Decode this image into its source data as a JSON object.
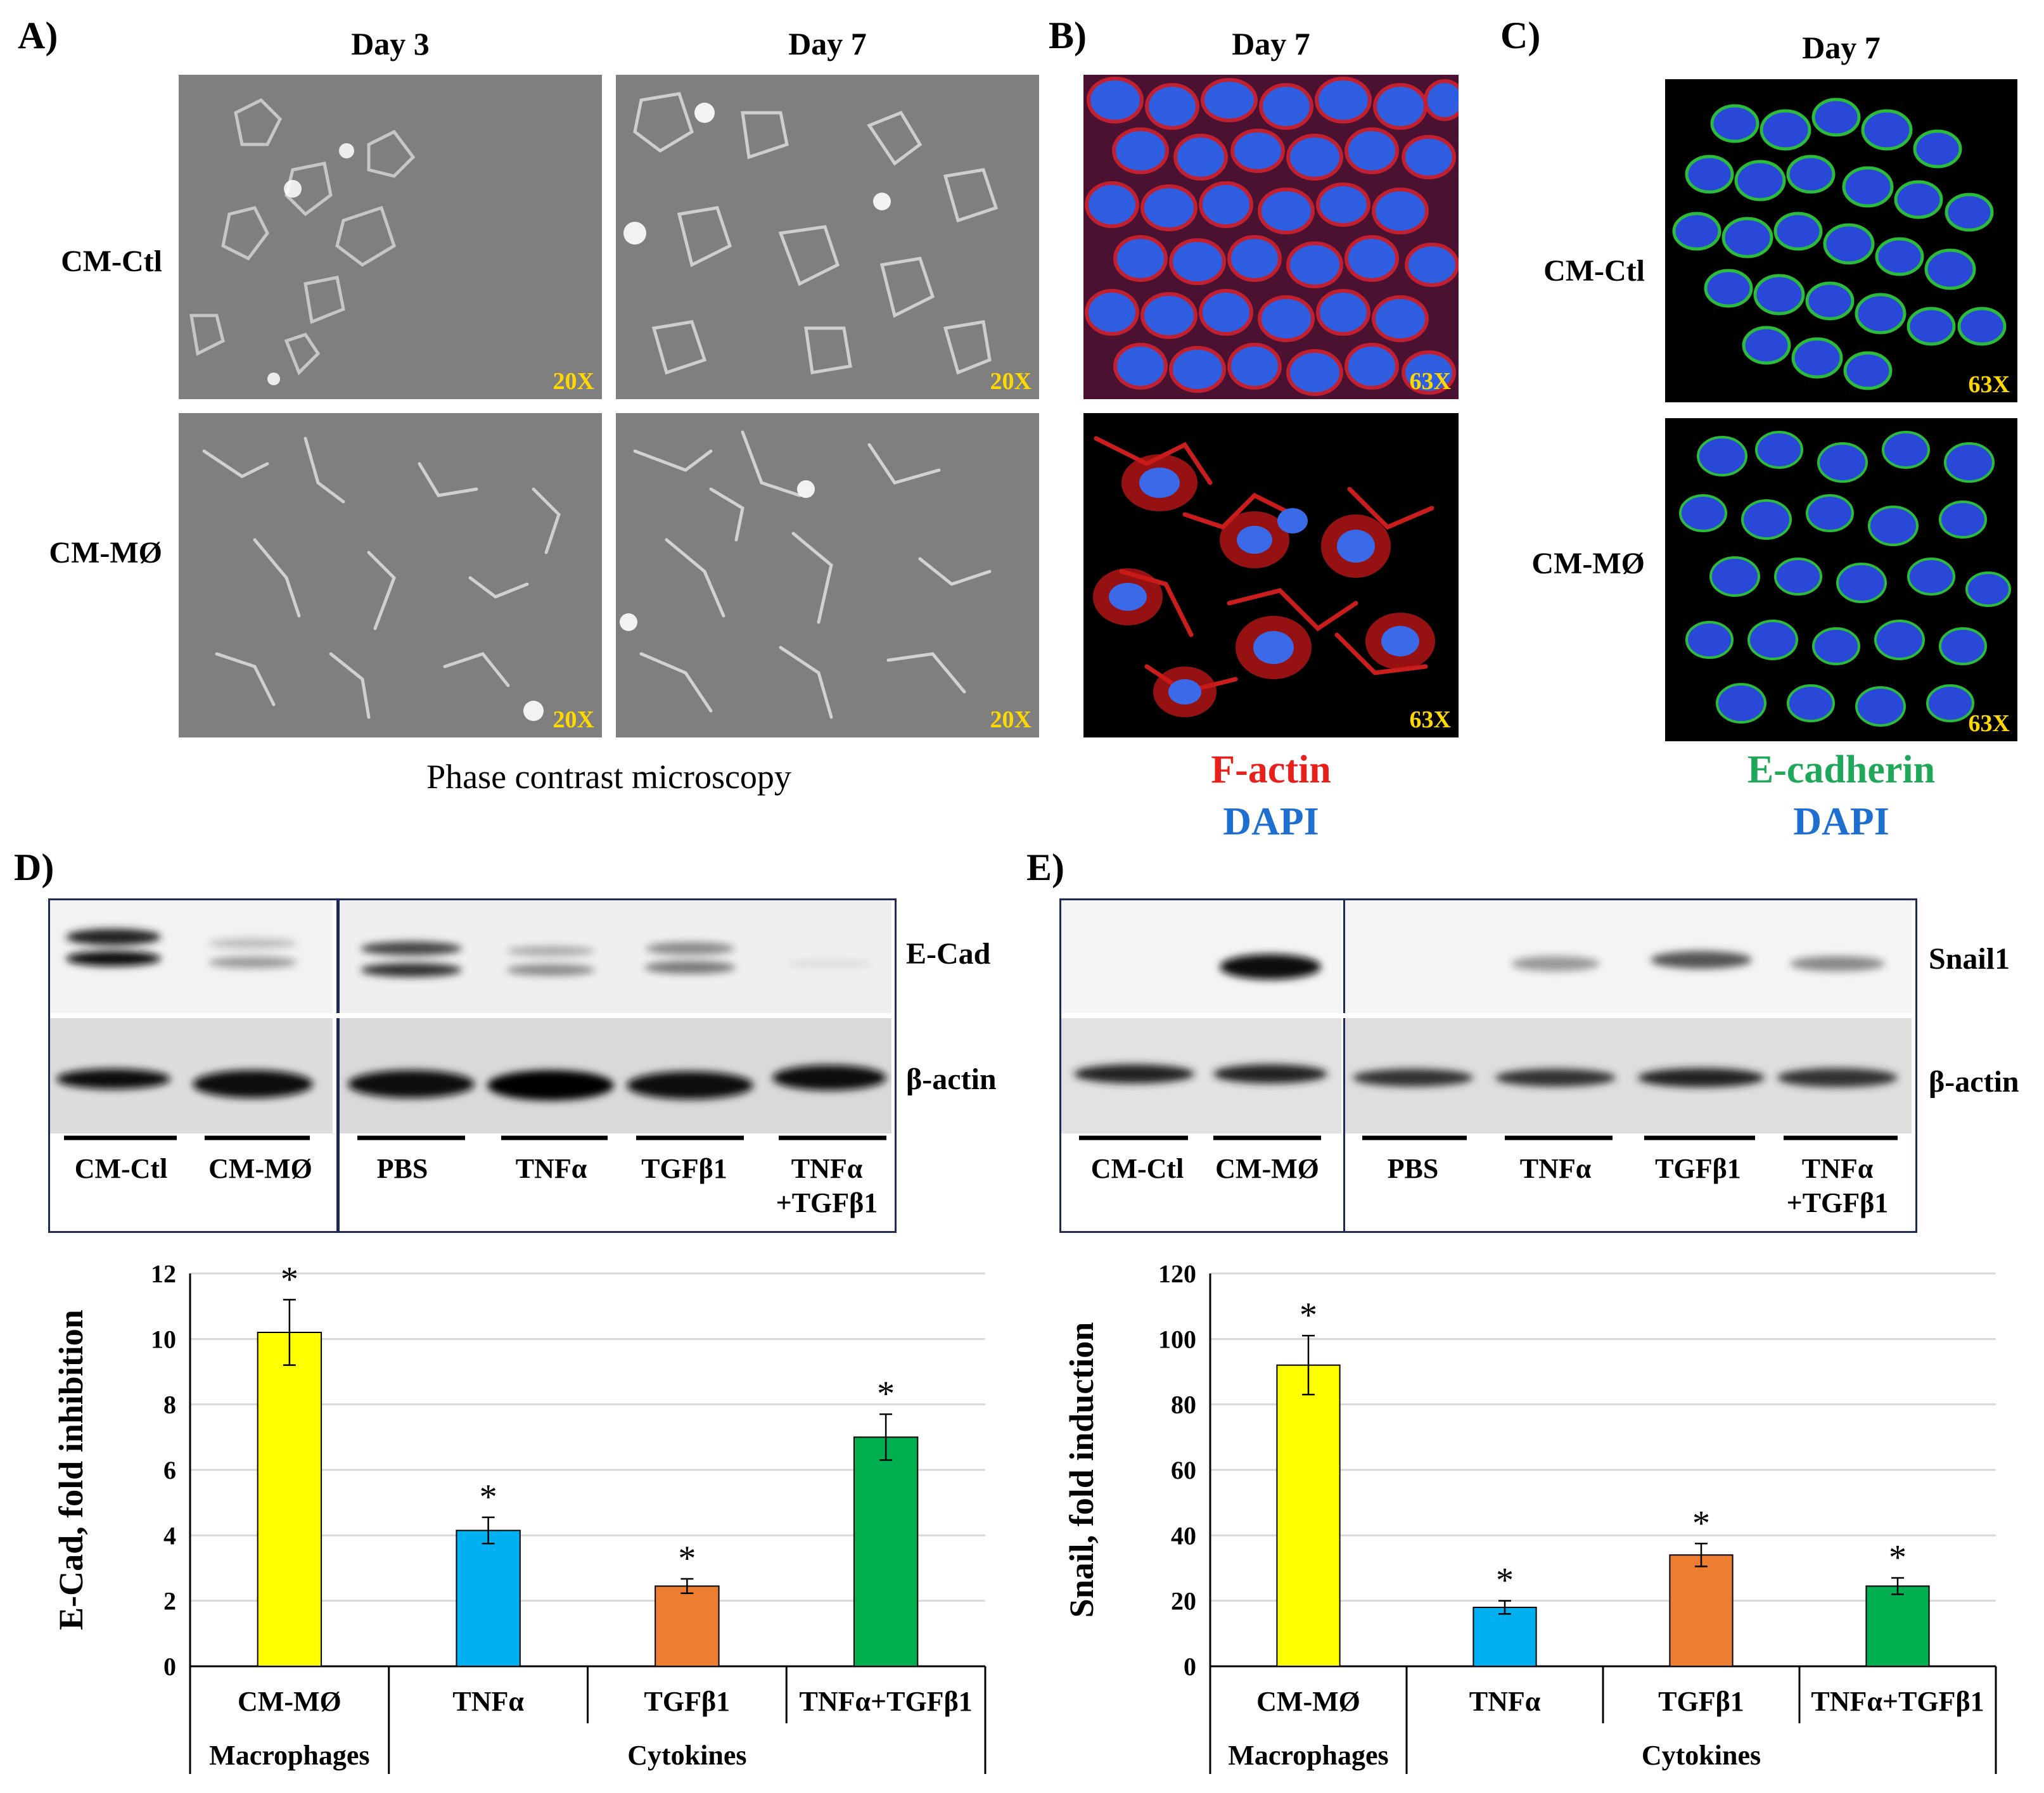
{
  "panelA": {
    "letter": "A)",
    "col_day3": "Day 3",
    "col_day7": "Day 7",
    "row_ctl": "CM-Ctl",
    "row_mo": "CM-MØ",
    "mag": "20X",
    "caption": "Phase contrast microscopy"
  },
  "panelB": {
    "letter": "B)",
    "col": "Day 7",
    "mag": "63X",
    "stain1": "F-actin",
    "stain2": "DAPI",
    "stain1_color": "#e8201b",
    "stain2_color": "#1f6fd0"
  },
  "panelC": {
    "letter": "C)",
    "col": "Day 7",
    "row_ctl": "CM-Ctl",
    "row_mo": "CM-MØ",
    "mag": "63X",
    "stain1": "E-cadherin",
    "stain2": "DAPI",
    "stain1_color": "#1fa85a",
    "stain2_color": "#1f6fd0"
  },
  "panelD": {
    "letter": "D)",
    "band_top": "E-Cad",
    "band_bottom": "β-actin",
    "lanes": [
      "CM-Ctl",
      "CM-MØ",
      "PBS",
      "TNFα",
      "TGFβ1",
      "TNFα\n+TGFβ1"
    ]
  },
  "panelE": {
    "letter": "E)",
    "band_top": "Snail1",
    "band_bottom": "β-actin",
    "lanes": [
      "CM-Ctl",
      "CM-MØ",
      "PBS",
      "TNFα",
      "TGFβ1",
      "TNFα\n+TGFβ1"
    ]
  },
  "chart_data": [
    {
      "type": "bar",
      "categories": [
        "CM-MØ",
        "TNFα",
        "TGFβ1",
        "TNFα+TGFβ1"
      ],
      "groups": [
        {
          "label": "Macrophages",
          "categories": [
            "CM-MØ"
          ]
        },
        {
          "label": "Cytokines",
          "categories": [
            "TNFα",
            "TGFβ1",
            "TNFα+TGFβ1"
          ]
        }
      ],
      "values": [
        10.2,
        4.15,
        2.45,
        7.0
      ],
      "errors": [
        1.0,
        0.4,
        0.22,
        0.7
      ],
      "significance": [
        "*",
        "*",
        "*",
        "*"
      ],
      "colors": [
        "#ffff00",
        "#00b0f0",
        "#ed7d31",
        "#00b050"
      ],
      "ylabel": "E-Cad, fold inhibition",
      "ylim": [
        0,
        12
      ],
      "yticks": [
        0,
        2,
        4,
        6,
        8,
        10,
        12
      ],
      "grid": true
    },
    {
      "type": "bar",
      "categories": [
        "CM-MØ",
        "TNFα",
        "TGFβ1",
        "TNFα+TGFβ1"
      ],
      "groups": [
        {
          "label": "Macrophages",
          "categories": [
            "CM-MØ"
          ]
        },
        {
          "label": "Cytokines",
          "categories": [
            "TNFα",
            "TGFβ1",
            "TNFα+TGFβ1"
          ]
        }
      ],
      "values": [
        92,
        18,
        34,
        24.5
      ],
      "errors": [
        9,
        2,
        3.5,
        2.5
      ],
      "significance": [
        "*",
        "*",
        "*",
        "*"
      ],
      "colors": [
        "#ffff00",
        "#00b0f0",
        "#ed7d31",
        "#00b050"
      ],
      "ylabel": "Snail, fold induction",
      "ylim": [
        0,
        120
      ],
      "yticks": [
        0,
        20,
        40,
        60,
        80,
        100,
        120
      ],
      "grid": true
    }
  ]
}
